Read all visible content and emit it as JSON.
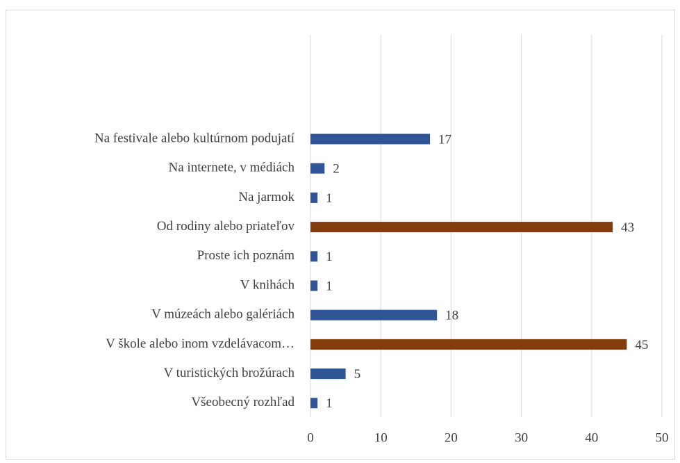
{
  "chart_data": {
    "type": "bar",
    "orientation": "horizontal",
    "categories": [
      "Na festivale alebo kultúrnom podujatí",
      "Na internete, v médiách",
      "Na jarmok",
      "Od rodiny alebo priateľov",
      "Proste ich poznám",
      "V knihách",
      "V múzeách alebo galériách",
      "V škole alebo inom vzdelávacom…",
      "V turistických brožúrach",
      "Všeobecný rozhľad"
    ],
    "values": [
      17,
      2,
      1,
      43,
      1,
      1,
      18,
      45,
      5,
      1
    ],
    "colors": [
      "#2f5597",
      "#2f5597",
      "#2f5597",
      "#843c0c",
      "#2f5597",
      "#2f5597",
      "#2f5597",
      "#843c0c",
      "#2f5597",
      "#2f5597"
    ],
    "xlim": [
      0,
      50
    ],
    "xticks": [
      0,
      10,
      20,
      30,
      40,
      50
    ],
    "grid": true
  }
}
